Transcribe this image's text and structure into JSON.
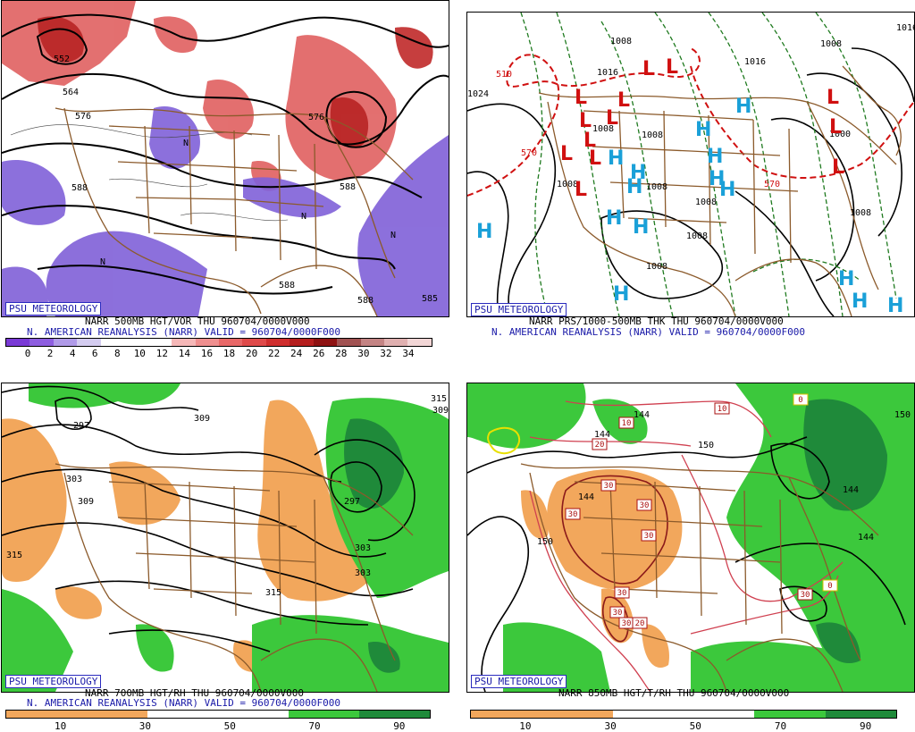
{
  "panels": [
    {
      "logo": "PSU METEOROLOGY",
      "line1": "NARR 500MB HGT/VOR THU 960704/0000V000",
      "line2": "N. AMERICAN REANALYSIS (NARR) VALID = 960704/0000F000",
      "colorbar_ticks": [
        "0",
        "2",
        "4",
        "6",
        "8",
        "10",
        "12",
        "14",
        "16",
        "18",
        "20",
        "22",
        "24",
        "26",
        "28",
        "30",
        "32",
        "34"
      ],
      "colorbar_colors": [
        "#7a3ad6",
        "#8e5ee0",
        "#b09ae8",
        "#d4ccf0",
        "#ffffff",
        "#ffffff",
        "#ffffff",
        "#f6b8b8",
        "#ef8f8f",
        "#e86868",
        "#df4a4a",
        "#cf2e2e",
        "#b51e1e",
        "#8e1212",
        "#a15252",
        "#c48484",
        "#e0b0b0",
        "#f2d6d6"
      ],
      "labels": [
        "552",
        "564",
        "576",
        "588",
        "588",
        "576",
        "588",
        "588",
        "585",
        "N"
      ]
    },
    {
      "logo": "PSU METEOROLOGY",
      "line1": "NARR PRS/1000-500MB THK THU 960704/0000V000",
      "line2": "N. AMERICAN REANALYSIS (NARR) VALID = 960704/0000F000",
      "labels": [
        "1008",
        "1008",
        "1016",
        "1008",
        "1008",
        "1008",
        "1008",
        "1008",
        "1008",
        "1008",
        "1000",
        "1016",
        "1024",
        "1016",
        "1008",
        "570",
        "570",
        "510"
      ],
      "low_symbol": "L",
      "high_symbol": "H"
    },
    {
      "logo": "PSU METEOROLOGY",
      "line1": "NARR 700MB HGT/RH THU 960704/0000V000",
      "line2": "N. AMERICAN REANALYSIS (NARR) VALID = 960704/0000F000",
      "colorbar_ticks": [
        "10",
        "30",
        "50",
        "70",
        "90"
      ],
      "labels": [
        "297",
        "303",
        "309",
        "315",
        "309",
        "303",
        "297",
        "315",
        "303",
        "309",
        "315"
      ]
    },
    {
      "logo": "PSU METEOROLOGY",
      "line1": "NARR 850MB HGT/T/RH THU 960704/0000V000",
      "colorbar_ticks": [
        "10",
        "30",
        "50",
        "70",
        "90"
      ],
      "labels": [
        "144",
        "144",
        "150",
        "144",
        "150",
        "144",
        "150",
        "144"
      ],
      "temp_boxes": [
        "0",
        "10",
        "10",
        "20",
        "30",
        "30",
        "30",
        "30",
        "30",
        "30",
        "30",
        "20",
        "30",
        "0"
      ]
    }
  ]
}
